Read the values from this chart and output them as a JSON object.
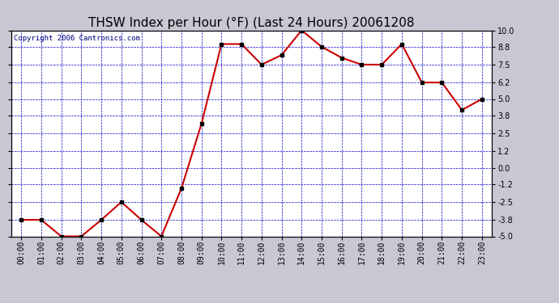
{
  "title": "THSW Index per Hour (°F) (Last 24 Hours) 20061208",
  "copyright": "Copyright 2006 Cantronics.com",
  "hours": [
    "00:00",
    "01:00",
    "02:00",
    "03:00",
    "04:00",
    "05:00",
    "06:00",
    "07:00",
    "08:00",
    "09:00",
    "10:00",
    "11:00",
    "12:00",
    "13:00",
    "14:00",
    "15:00",
    "16:00",
    "17:00",
    "18:00",
    "19:00",
    "20:00",
    "21:00",
    "22:00",
    "23:00"
  ],
  "values": [
    -3.8,
    -3.8,
    -5.0,
    -5.0,
    -3.8,
    -2.5,
    -3.8,
    -5.0,
    -1.5,
    3.2,
    9.0,
    9.0,
    7.5,
    8.2,
    10.0,
    8.8,
    8.0,
    7.5,
    7.5,
    9.0,
    6.2,
    6.2,
    4.2,
    5.0
  ],
  "ylim": [
    -5.0,
    10.0
  ],
  "yticks": [
    -5.0,
    -3.8,
    -2.5,
    -1.2,
    0.0,
    1.2,
    2.5,
    3.8,
    5.0,
    6.2,
    7.5,
    8.8,
    10.0
  ],
  "bg_color": "#c8c8d4",
  "plot_bg_color": "#ffffff",
  "line_color": "#cc0000",
  "marker_color": "#000000",
  "grid_color": "#0000cc",
  "title_color": "#000000",
  "copyright_color": "#000080",
  "title_fontsize": 11,
  "tick_fontsize": 7,
  "copyright_fontsize": 6.5
}
